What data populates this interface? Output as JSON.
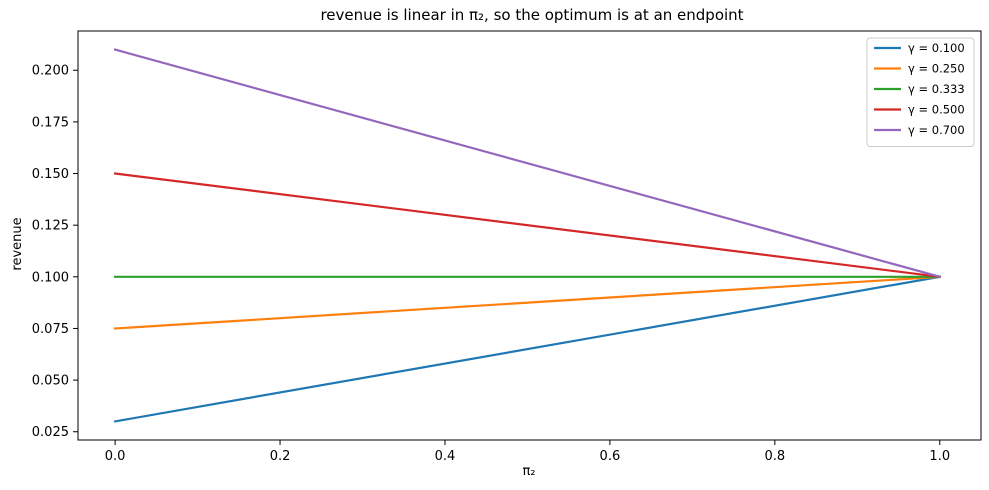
{
  "chart_data": {
    "type": "line",
    "title": "revenue is linear in π₂, so the optimum is at an endpoint",
    "xlabel": "π₂",
    "ylabel": "revenue",
    "xlim": [
      -0.045,
      1.05
    ],
    "ylim": [
      0.021,
      0.219
    ],
    "xticks": [
      0.0,
      0.2,
      0.4,
      0.6,
      0.8,
      1.0
    ],
    "xtick_labels": [
      "0.0",
      "0.2",
      "0.4",
      "0.6",
      "0.8",
      "1.0"
    ],
    "yticks": [
      0.025,
      0.05,
      0.075,
      0.1,
      0.125,
      0.15,
      0.175,
      0.2
    ],
    "ytick_labels": [
      "0.025",
      "0.050",
      "0.075",
      "0.100",
      "0.125",
      "0.150",
      "0.175",
      "0.200"
    ],
    "grid": false,
    "legend_position": "top-right",
    "series": [
      {
        "name": "γ = 0.100",
        "color": "#1f77b4",
        "x": [
          0.0,
          1.0
        ],
        "y": [
          0.03,
          0.1
        ]
      },
      {
        "name": "γ = 0.250",
        "color": "#ff7f0e",
        "x": [
          0.0,
          1.0
        ],
        "y": [
          0.075,
          0.1
        ]
      },
      {
        "name": "γ = 0.333",
        "color": "#2ca02c",
        "x": [
          0.0,
          1.0
        ],
        "y": [
          0.1,
          0.1
        ]
      },
      {
        "name": "γ = 0.500",
        "color": "#d62728",
        "x": [
          0.0,
          1.0
        ],
        "y": [
          0.15,
          0.1
        ]
      },
      {
        "name": "γ = 0.700",
        "color": "#9467bd",
        "x": [
          0.0,
          1.0
        ],
        "y": [
          0.21,
          0.1
        ]
      }
    ]
  }
}
